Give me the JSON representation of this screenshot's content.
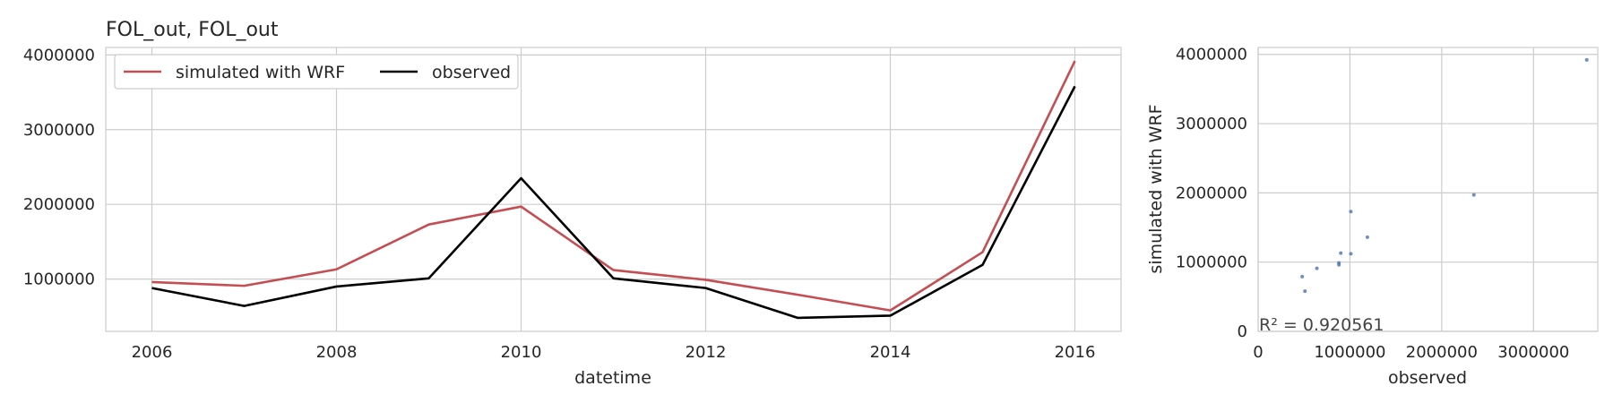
{
  "chart_data": [
    {
      "type": "line",
      "title": "FOL_out, FOL_out",
      "xlabel": "datetime",
      "ylabel": "",
      "x": [
        2006,
        2007,
        2008,
        2009,
        2010,
        2011,
        2012,
        2013,
        2014,
        2015,
        2016
      ],
      "xlim": [
        2005.5,
        2016.5
      ],
      "ylim": [
        300000,
        4100000
      ],
      "xticks": [
        "2006",
        "2008",
        "2010",
        "2012",
        "2014",
        "2016"
      ],
      "yticks": [
        "1000000",
        "2000000",
        "3000000",
        "4000000"
      ],
      "grid": true,
      "legend_position": "top-left",
      "series": [
        {
          "name": "simulated with WRF",
          "color": "#c44e52",
          "values": [
            960000,
            910000,
            1130000,
            1730000,
            1970000,
            1120000,
            990000,
            790000,
            580000,
            1360000,
            3920000
          ]
        },
        {
          "name": "observed",
          "color": "#000000",
          "values": [
            880000,
            640000,
            900000,
            1010000,
            2350000,
            1010000,
            880000,
            480000,
            510000,
            1190000,
            3580000
          ]
        }
      ]
    },
    {
      "type": "scatter",
      "title": "",
      "xlabel": "observed",
      "ylabel": "simulated with WRF",
      "xlim": [
        0,
        3700000
      ],
      "ylim": [
        0,
        4100000
      ],
      "xticks": [
        "0",
        "1000000",
        "2000000",
        "3000000"
      ],
      "yticks": [
        "0",
        "1000000",
        "2000000",
        "3000000",
        "4000000"
      ],
      "grid": true,
      "point_color": "#4c72b0",
      "annotation": "R² = 0.920561",
      "points": [
        {
          "x": 880000,
          "y": 960000
        },
        {
          "x": 640000,
          "y": 910000
        },
        {
          "x": 900000,
          "y": 1130000
        },
        {
          "x": 1010000,
          "y": 1730000
        },
        {
          "x": 2350000,
          "y": 1970000
        },
        {
          "x": 1010000,
          "y": 1120000
        },
        {
          "x": 880000,
          "y": 990000
        },
        {
          "x": 480000,
          "y": 790000
        },
        {
          "x": 510000,
          "y": 580000
        },
        {
          "x": 1190000,
          "y": 1360000
        },
        {
          "x": 3580000,
          "y": 3920000
        }
      ]
    }
  ]
}
